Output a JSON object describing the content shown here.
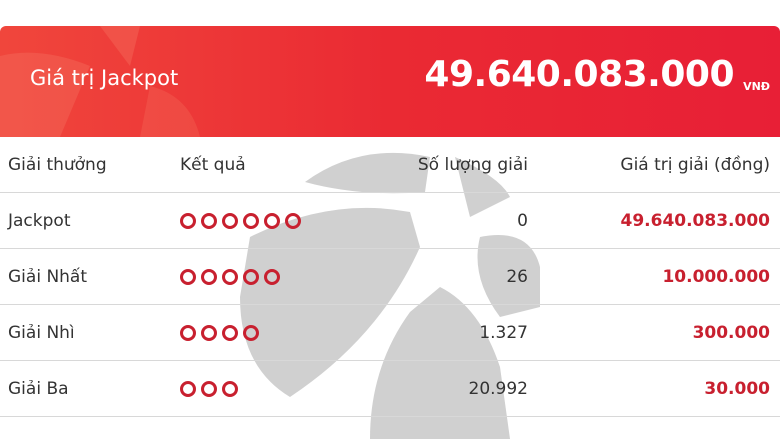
{
  "banner": {
    "label": "Giá trị Jackpot",
    "value": "49.640.083.000",
    "unit": "VNĐ"
  },
  "table": {
    "headers": [
      "Giải thưởng",
      "Kết quả",
      "Số lượng giải",
      "Giá trị giải (đồng)"
    ],
    "rows": [
      {
        "name": "Jackpot",
        "balls": 6,
        "count": "0",
        "value": "49.640.083.000"
      },
      {
        "name": "Giải Nhất",
        "balls": 5,
        "count": "26",
        "value": "10.000.000"
      },
      {
        "name": "Giải Nhì",
        "balls": 4,
        "count": "1.327",
        "value": "300.000"
      },
      {
        "name": "Giải Ba",
        "balls": 3,
        "count": "20.992",
        "value": "30.000"
      }
    ]
  },
  "colors": {
    "accent": "#e8273a",
    "prize_text": "#c8202f",
    "watermark": "#d0d0d0"
  }
}
